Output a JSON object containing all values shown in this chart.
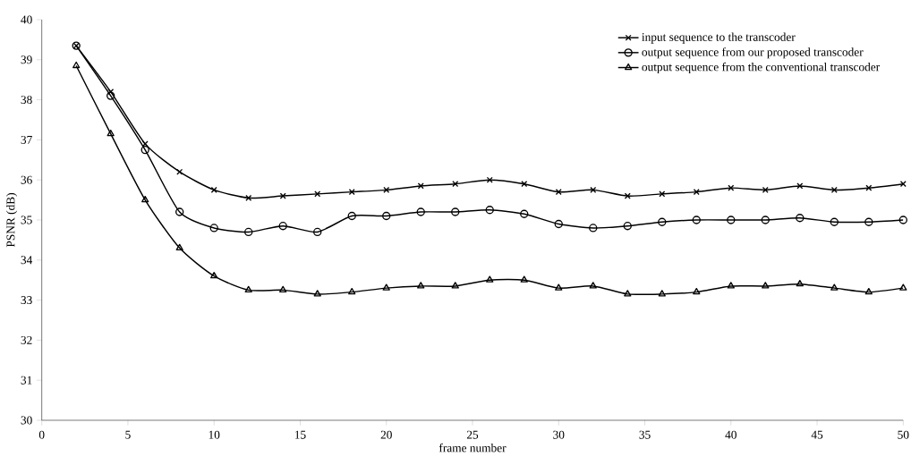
{
  "chart_data": {
    "type": "line",
    "xlabel": "frame number",
    "ylabel": "PSNR (dB)",
    "xlim": [
      0,
      50
    ],
    "ylim": [
      30,
      40
    ],
    "xticks": [
      0,
      5,
      10,
      15,
      20,
      25,
      30,
      35,
      40,
      45,
      50
    ],
    "yticks": [
      30,
      31,
      32,
      33,
      34,
      35,
      36,
      37,
      38,
      39,
      40
    ],
    "grid": false,
    "legend": "top right",
    "line_style": "solid",
    "x": [
      2,
      4,
      6,
      8,
      10,
      12,
      14,
      16,
      18,
      20,
      22,
      24,
      26,
      28,
      30,
      32,
      34,
      36,
      38,
      40,
      42,
      44,
      46,
      48,
      50
    ],
    "series": [
      {
        "name": "input sequence to the transcoder",
        "color": "#000000",
        "marker": "cross",
        "values": [
          39.35,
          38.2,
          36.9,
          36.2,
          35.75,
          35.55,
          35.6,
          35.65,
          35.7,
          35.75,
          35.85,
          35.9,
          36.0,
          35.9,
          35.7,
          35.75,
          35.6,
          35.65,
          35.7,
          35.8,
          35.75,
          35.85,
          35.75,
          35.8,
          35.9
        ]
      },
      {
        "name": "output sequence from our proposed transcoder",
        "color": "#000000",
        "marker": "circle",
        "values": [
          39.35,
          38.1,
          36.75,
          35.2,
          34.8,
          34.7,
          34.85,
          34.7,
          35.1,
          35.1,
          35.2,
          35.2,
          35.25,
          35.15,
          34.9,
          34.8,
          34.85,
          34.95,
          35.0,
          35.0,
          35.0,
          35.05,
          34.95,
          34.95,
          35.0
        ]
      },
      {
        "name": "output sequence from the conventional transcoder",
        "color": "#000000",
        "marker": "triangle",
        "values": [
          38.85,
          37.15,
          35.5,
          34.3,
          33.6,
          33.25,
          33.25,
          33.15,
          33.2,
          33.3,
          33.35,
          33.35,
          33.5,
          33.5,
          33.3,
          33.35,
          33.15,
          33.15,
          33.2,
          33.35,
          33.35,
          33.4,
          33.3,
          33.2,
          33.3
        ]
      }
    ]
  }
}
